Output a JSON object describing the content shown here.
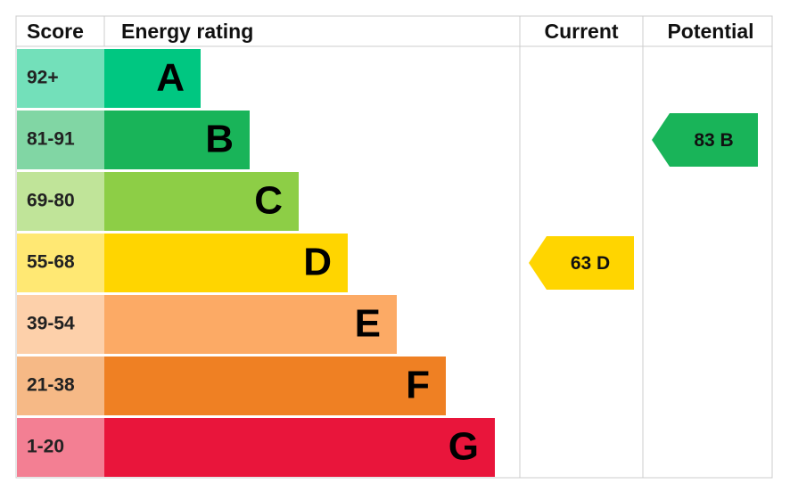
{
  "header": {
    "score": "Score",
    "rating": "Energy rating",
    "current": "Current",
    "potential": "Potential"
  },
  "bands": [
    {
      "score": "92+",
      "letter": "A",
      "color": "#00c781"
    },
    {
      "score": "81-91",
      "letter": "B",
      "color": "#19b459"
    },
    {
      "score": "69-80",
      "letter": "C",
      "color": "#8dce46"
    },
    {
      "score": "55-68",
      "letter": "D",
      "color": "#ffd500"
    },
    {
      "score": "39-54",
      "letter": "E",
      "color": "#fcaa65"
    },
    {
      "score": "21-38",
      "letter": "F",
      "color": "#ef8023"
    },
    {
      "score": "1-20",
      "letter": "G",
      "color": "#e9153b"
    }
  ],
  "current": {
    "score": 63,
    "rating": "D"
  },
  "potential": {
    "score": 83,
    "rating": "B"
  }
}
